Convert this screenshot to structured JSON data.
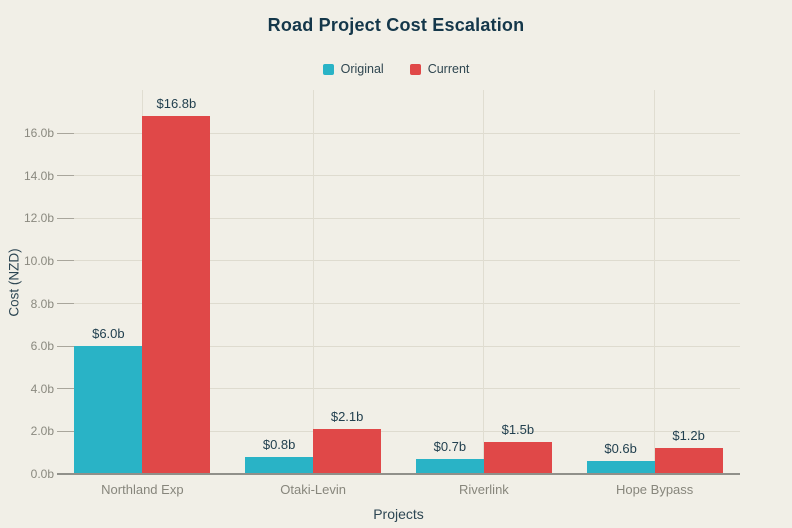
{
  "chart_data": {
    "type": "bar",
    "title": "Road Project Cost Escalation",
    "xlabel": "Projects",
    "ylabel": "Cost (NZD)",
    "categories": [
      "Northland Exp",
      "Otaki-Levin",
      "Riverlink",
      "Hope Bypass"
    ],
    "series": [
      {
        "name": "Original",
        "color": "#29b3c6",
        "values": [
          6.0,
          0.8,
          0.7,
          0.6
        ],
        "labels": [
          "$6.0b",
          "$0.8b",
          "$0.7b",
          "$0.6b"
        ]
      },
      {
        "name": "Current",
        "color": "#e04848",
        "values": [
          16.8,
          2.1,
          1.5,
          1.2
        ],
        "labels": [
          "$16.8b",
          "$2.1b",
          "$1.5b",
          "$1.2b"
        ]
      }
    ],
    "ylim": [
      0,
      18.0
    ],
    "yticks": [
      0,
      2,
      4,
      6,
      8,
      10,
      12,
      14,
      16
    ],
    "ytick_labels": [
      "0.0b",
      "2.0b",
      "4.0b",
      "6.0b",
      "8.0b",
      "10.0b",
      "12.0b",
      "14.0b",
      "16.0b"
    ],
    "grid": true,
    "legend_position": "top"
  },
  "colors": {
    "background": "#f1efe7",
    "grid": "#dedbcf",
    "axis": "#90908a",
    "text_primary": "#14374a",
    "text_muted": "#8a897f"
  }
}
